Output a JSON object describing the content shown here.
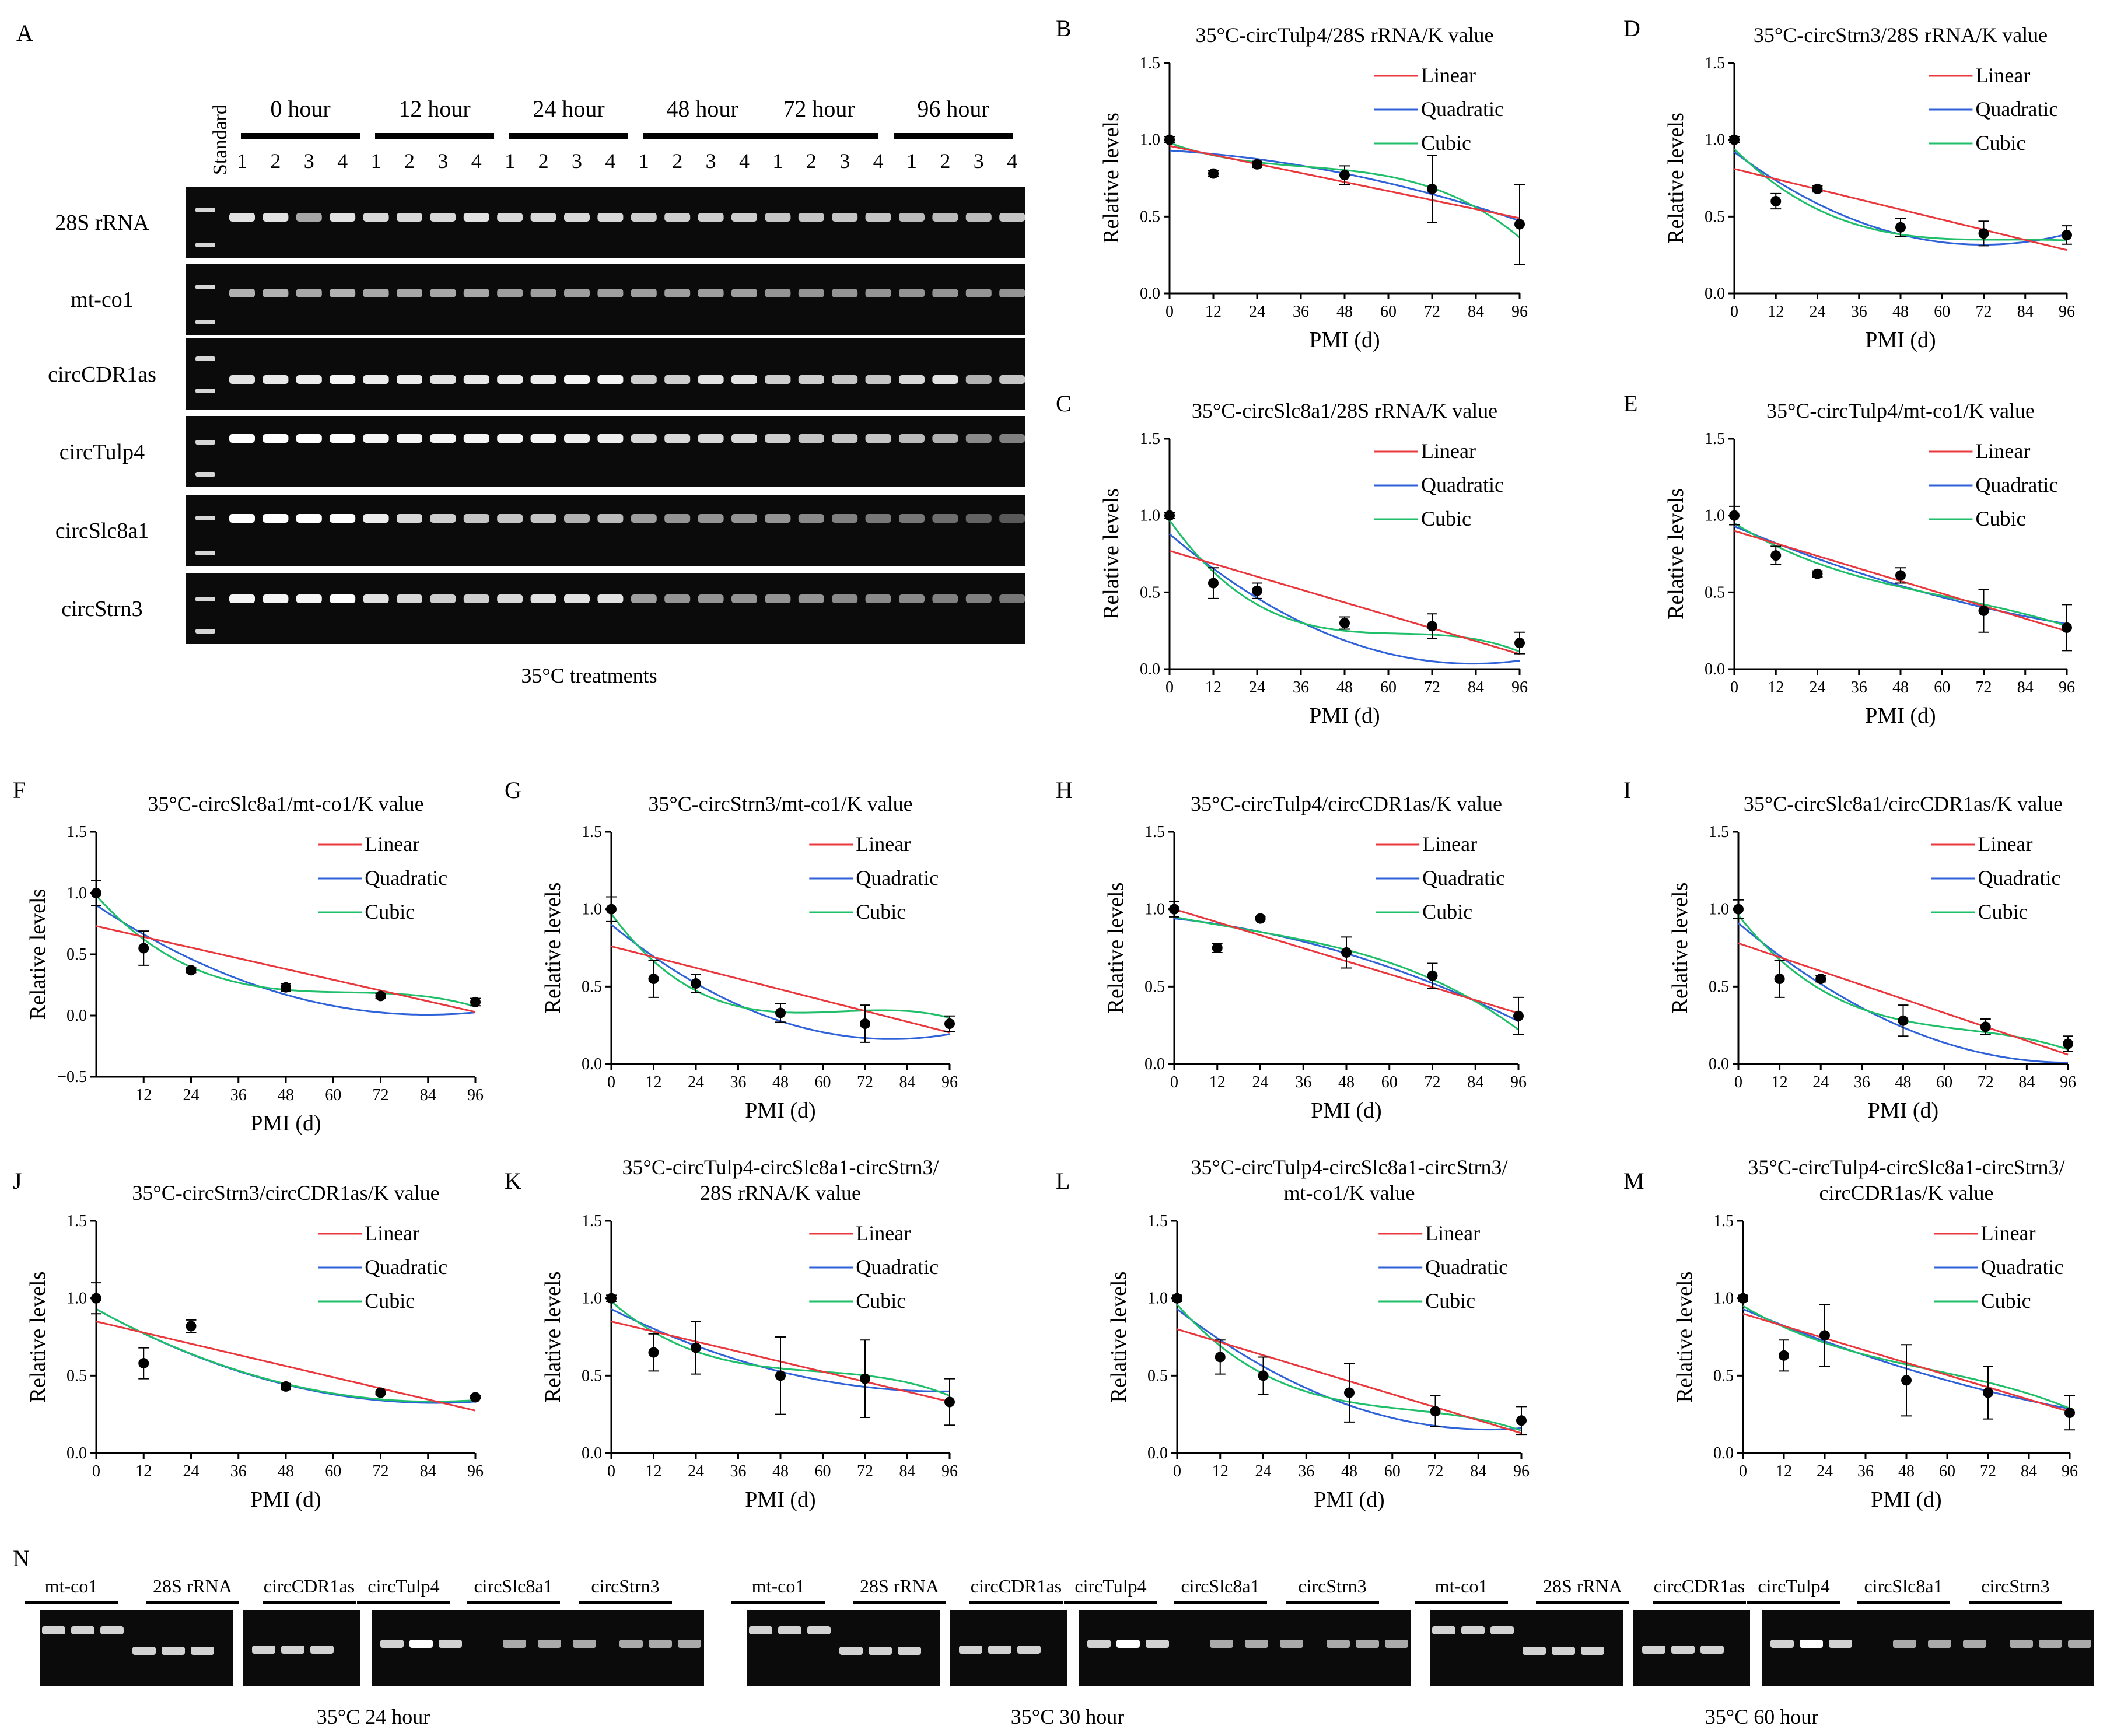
{
  "panel_a": {
    "letter": "A",
    "standard_label": "Standard",
    "time_groups": [
      "0 hour",
      "12 hour",
      "24 hour",
      "48 hour",
      "72 hour",
      "96 hour"
    ],
    "lane_numbers": [
      "1",
      "2",
      "3",
      "4"
    ],
    "row_labels": [
      "28S rRNA",
      "mt-co1",
      "circCDR1as",
      "circTulp4",
      "circSlc8a1",
      "circStrn3"
    ],
    "caption": "35°C treatments"
  },
  "panel_n": {
    "letter": "N",
    "gel_labels": [
      "mt-co1",
      "28S rRNA",
      "circCDR1as",
      "circTulp4",
      "circSlc8a1",
      "circStrn3"
    ],
    "captions": [
      "35°C 24 hour",
      "35°C 30 hour",
      "35°C 60 hour"
    ]
  },
  "shared": {
    "xlabel": "PMI (d)",
    "ylabel": "Relative levels",
    "legend": [
      "Linear",
      "Quadratic",
      "Cubic"
    ],
    "colors": {
      "linear": "#e8383d",
      "quadratic": "#2f62d8",
      "cubic": "#1fbf6a",
      "points": "#000000"
    }
  },
  "chart_data": [
    {
      "id": "B",
      "type": "scatter",
      "title": [
        "35°C-circTulp4/28S rRNA/K value"
      ],
      "xlim": [
        0,
        96
      ],
      "ylim": [
        0,
        1.5
      ],
      "xticks": [
        0,
        12,
        24,
        36,
        48,
        60,
        72,
        84,
        96
      ],
      "yticks": [
        0.0,
        0.5,
        1.0,
        1.5
      ],
      "x": [
        0,
        12,
        24,
        48,
        72,
        96
      ],
      "y": [
        1.0,
        0.78,
        0.84,
        0.77,
        0.68,
        0.45
      ],
      "err": [
        0.02,
        0.02,
        0.02,
        0.06,
        0.22,
        0.26
      ],
      "fits": {
        "linear": [
          0.96,
          -0.0049
        ],
        "quadratic": [
          0.93,
          -0.0015,
          -3.4e-05
        ],
        "cubic": [
          0.98,
          -0.0088,
          0.000188,
          -1.7e-06
        ]
      }
    },
    {
      "id": "D",
      "type": "scatter",
      "title": [
        "35°C-circStrn3/28S rRNA/K value"
      ],
      "xlim": [
        0,
        96
      ],
      "ylim": [
        0,
        1.5
      ],
      "xticks": [
        0,
        12,
        24,
        36,
        48,
        60,
        72,
        84,
        96
      ],
      "yticks": [
        0.0,
        0.5,
        1.0,
        1.5
      ],
      "x": [
        0,
        12,
        24,
        48,
        72,
        96
      ],
      "y": [
        1.0,
        0.6,
        0.68,
        0.43,
        0.39,
        0.38
      ],
      "err": [
        0.02,
        0.05,
        0.02,
        0.06,
        0.08,
        0.06
      ],
      "fits": {
        "linear": [
          0.81,
          -0.0055
        ],
        "quadratic": [
          0.92,
          -0.0168,
          0.000117
        ],
        "cubic": [
          0.94,
          -0.0225,
          0.000285,
          -1.2e-06
        ]
      }
    },
    {
      "id": "C",
      "type": "scatter",
      "title": [
        "35°C-circSlc8a1/28S rRNA/K value"
      ],
      "xlim": [
        0,
        96
      ],
      "ylim": [
        0,
        1.5
      ],
      "xticks": [
        0,
        12,
        24,
        36,
        48,
        60,
        72,
        84,
        96
      ],
      "yticks": [
        0.0,
        0.5,
        1.0,
        1.5
      ],
      "x": [
        0,
        12,
        24,
        48,
        72,
        96
      ],
      "y": [
        1.0,
        0.56,
        0.51,
        0.3,
        0.28,
        0.17
      ],
      "err": [
        0.02,
        0.1,
        0.05,
        0.04,
        0.08,
        0.07
      ],
      "fits": {
        "linear": [
          0.77,
          -0.007
        ],
        "quadratic": [
          0.88,
          -0.0203,
          0.000122
        ],
        "cubic": [
          0.97,
          -0.034,
          0.00053,
          -2.8e-06
        ]
      }
    },
    {
      "id": "E",
      "type": "scatter",
      "title": [
        "35°C-circTulp4/mt-co1/K value"
      ],
      "xlim": [
        0,
        96
      ],
      "ylim": [
        0,
        1.5
      ],
      "xticks": [
        0,
        12,
        24,
        36,
        48,
        60,
        72,
        84,
        96
      ],
      "yticks": [
        0.0,
        0.5,
        1.0,
        1.5
      ],
      "x": [
        0,
        12,
        24,
        48,
        72,
        96
      ],
      "y": [
        1.0,
        0.74,
        0.62,
        0.61,
        0.38,
        0.27
      ],
      "err": [
        0.06,
        0.06,
        0.02,
        0.05,
        0.14,
        0.15
      ],
      "fits": {
        "linear": [
          0.9,
          -0.0068
        ],
        "quadratic": [
          0.93,
          -0.0095,
          3e-05
        ],
        "cubic": [
          0.95,
          -0.014,
          0.00015,
          -8e-07
        ]
      }
    },
    {
      "id": "F",
      "type": "scatter",
      "title": [
        "35°C-circSlc8a1/mt-co1/K value"
      ],
      "xlim": [
        0,
        96
      ],
      "ylim": [
        -0.5,
        1.5
      ],
      "xticks": [
        12,
        24,
        36,
        48,
        60,
        72,
        84,
        96
      ],
      "yticks": [
        -0.5,
        0.0,
        0.5,
        1.0,
        1.5
      ],
      "x": [
        0,
        12,
        24,
        48,
        72,
        96
      ],
      "y": [
        1.0,
        0.55,
        0.37,
        0.23,
        0.16,
        0.11
      ],
      "err": [
        0.1,
        0.14,
        0.02,
        0.03,
        0.02,
        0.03
      ],
      "fits": {
        "linear": [
          0.73,
          -0.0073
        ],
        "quadratic": [
          0.9,
          -0.0213,
          0.000127
        ],
        "cubic": [
          0.98,
          -0.036,
          0.000555,
          -2.9e-06
        ]
      }
    },
    {
      "id": "G",
      "type": "scatter",
      "title": [
        "35°C-circStrn3/mt-co1/K value"
      ],
      "xlim": [
        0,
        96
      ],
      "ylim": [
        0,
        1.5
      ],
      "xticks": [
        0,
        12,
        24,
        36,
        48,
        60,
        72,
        84,
        96
      ],
      "yticks": [
        0.0,
        0.5,
        1.0,
        1.5
      ],
      "x": [
        0,
        12,
        24,
        48,
        72,
        96
      ],
      "y": [
        1.0,
        0.55,
        0.52,
        0.33,
        0.26,
        0.26
      ],
      "err": [
        0.08,
        0.12,
        0.06,
        0.06,
        0.12,
        0.05
      ],
      "fits": {
        "linear": [
          0.76,
          -0.0058
        ],
        "quadratic": [
          0.9,
          -0.0186,
          0.000117
        ],
        "cubic": [
          0.97,
          -0.031,
          0.00049,
          -2.5e-06
        ]
      }
    },
    {
      "id": "H",
      "type": "scatter",
      "title": [
        "35°C-circTulp4/circCDR1as/K value"
      ],
      "xlim": [
        0,
        96
      ],
      "ylim": [
        0,
        1.5
      ],
      "xticks": [
        0,
        12,
        24,
        36,
        48,
        60,
        72,
        84,
        96
      ],
      "yticks": [
        0.0,
        0.5,
        1.0,
        1.5
      ],
      "x": [
        0,
        12,
        24,
        48,
        72,
        96
      ],
      "y": [
        1.0,
        0.75,
        0.94,
        0.72,
        0.57,
        0.31
      ],
      "err": [
        0.05,
        0.03,
        0.01,
        0.1,
        0.08,
        0.12
      ],
      "fits": {
        "linear": [
          1.0,
          -0.007
        ],
        "quadratic": [
          0.94,
          -0.0025,
          -4.6e-05
        ],
        "cubic": [
          0.95,
          -0.0045,
          3.5e-05,
          -7e-07
        ]
      }
    },
    {
      "id": "I",
      "type": "scatter",
      "title": [
        "35°C-circSlc8a1/circCDR1as/K value"
      ],
      "xlim": [
        0,
        96
      ],
      "ylim": [
        0,
        1.5
      ],
      "xticks": [
        0,
        12,
        24,
        36,
        48,
        60,
        72,
        84,
        96
      ],
      "yticks": [
        0.0,
        0.5,
        1.0,
        1.5
      ],
      "x": [
        0,
        12,
        24,
        48,
        72,
        96
      ],
      "y": [
        1.0,
        0.55,
        0.55,
        0.28,
        0.24,
        0.13
      ],
      "err": [
        0.06,
        0.12,
        0.02,
        0.1,
        0.05,
        0.05
      ],
      "fits": {
        "linear": [
          0.78,
          -0.0075
        ],
        "quadratic": [
          0.91,
          -0.0187,
          9.7e-05
        ],
        "cubic": [
          0.96,
          -0.028,
          0.00038,
          -1.9e-06
        ]
      }
    },
    {
      "id": "J",
      "type": "scatter",
      "title": [
        "35°C-circStrn3/circCDR1as/K value"
      ],
      "xlim": [
        0,
        96
      ],
      "ylim": [
        0,
        1.5
      ],
      "xticks": [
        0,
        12,
        24,
        36,
        48,
        60,
        72,
        84,
        96
      ],
      "yticks": [
        0.0,
        0.5,
        1.0,
        1.5
      ],
      "x": [
        0,
        12,
        24,
        48,
        72,
        96
      ],
      "y": [
        1.0,
        0.58,
        0.82,
        0.43,
        0.39,
        0.36
      ],
      "err": [
        0.1,
        0.1,
        0.04,
        0.02,
        0.01,
        0.01
      ],
      "fits": {
        "linear": [
          0.85,
          -0.006
        ],
        "quadratic": [
          0.93,
          -0.0141,
          8.2e-05
        ],
        "cubic": [
          0.93,
          -0.014,
          8.2e-05,
          0.0
        ]
      }
    },
    {
      "id": "K",
      "type": "scatter",
      "title": [
        "35°C-circTulp4-circSlc8a1-circStrn3/",
        "28S rRNA/K value"
      ],
      "xlim": [
        0,
        96
      ],
      "ylim": [
        0,
        1.5
      ],
      "xticks": [
        0,
        12,
        24,
        36,
        48,
        60,
        72,
        84,
        96
      ],
      "yticks": [
        0.0,
        0.5,
        1.0,
        1.5
      ],
      "x": [
        0,
        12,
        24,
        48,
        72,
        96
      ],
      "y": [
        1.0,
        0.65,
        0.68,
        0.5,
        0.48,
        0.33
      ],
      "err": [
        0.02,
        0.12,
        0.17,
        0.25,
        0.25,
        0.15
      ],
      "fits": {
        "linear": [
          0.85,
          -0.0054
        ],
        "quadratic": [
          0.93,
          -0.0113,
          6e-05
        ],
        "cubic": [
          0.98,
          -0.02,
          0.000315,
          -1.8e-06
        ]
      }
    },
    {
      "id": "L",
      "type": "scatter",
      "title": [
        "35°C-circTulp4-circSlc8a1-circStrn3/",
        "mt-co1/K value"
      ],
      "xlim": [
        0,
        96
      ],
      "ylim": [
        0,
        1.5
      ],
      "xticks": [
        0,
        12,
        24,
        36,
        48,
        60,
        72,
        84,
        96
      ],
      "yticks": [
        0.0,
        0.5,
        1.0,
        1.5
      ],
      "x": [
        0,
        12,
        24,
        48,
        72,
        96
      ],
      "y": [
        1.0,
        0.62,
        0.5,
        0.39,
        0.27,
        0.21
      ],
      "err": [
        0.02,
        0.11,
        0.12,
        0.19,
        0.1,
        0.09
      ],
      "fits": {
        "linear": [
          0.8,
          -0.007
        ],
        "quadratic": [
          0.93,
          -0.0179,
          0.000103
        ],
        "cubic": [
          0.96,
          -0.0265,
          0.00037,
          -1.9e-06
        ]
      }
    },
    {
      "id": "M",
      "type": "scatter",
      "title": [
        "35°C-circTulp4-circSlc8a1-circStrn3/",
        "circCDR1as/K value"
      ],
      "xlim": [
        0,
        96
      ],
      "ylim": [
        0,
        1.5
      ],
      "xticks": [
        0,
        12,
        24,
        36,
        48,
        60,
        72,
        84,
        96
      ],
      "yticks": [
        0.0,
        0.5,
        1.0,
        1.5
      ],
      "x": [
        0,
        12,
        24,
        48,
        72,
        96
      ],
      "y": [
        1.0,
        0.63,
        0.76,
        0.47,
        0.39,
        0.26
      ],
      "err": [
        0.02,
        0.1,
        0.2,
        0.23,
        0.17,
        0.11
      ],
      "fits": {
        "linear": [
          0.9,
          -0.0066
        ],
        "quadratic": [
          0.93,
          -0.0093,
          2.7e-05
        ],
        "cubic": [
          0.95,
          -0.013,
          0.00015,
          -9e-07
        ]
      }
    }
  ]
}
